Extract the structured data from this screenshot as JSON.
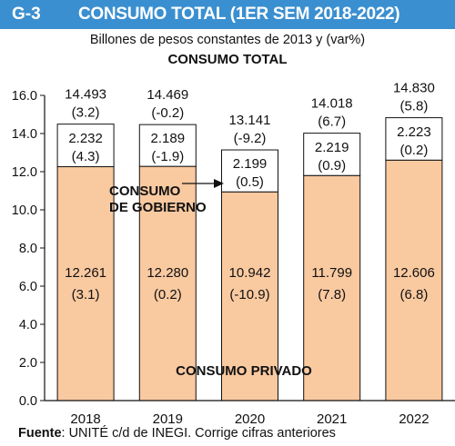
{
  "header": {
    "number": "G-3",
    "title": "CONSUMO TOTAL (1ER SEM 2018-2022)"
  },
  "subtitle": "Billones de pesos constantes de 2013 y (var%)",
  "source": {
    "label": "Fuente",
    "text": ": UNITÉ c/d de INEGI. Corrige cifras anteriores"
  },
  "colors": {
    "header": "#3a8fd0",
    "private": "#f9c9a0",
    "government": "#ffffff",
    "border": "#111111"
  },
  "chart_data": {
    "type": "bar",
    "title": "CONSUMO TOTAL",
    "categories": [
      "2018",
      "2019",
      "2020",
      "2021",
      "2022"
    ],
    "ylim": [
      0,
      16
    ],
    "yticks": [
      "0.0",
      "2.0",
      "4.0",
      "6.0",
      "8.0",
      "10.0",
      "12.0",
      "14.0",
      "16.0"
    ],
    "grid": false,
    "stacked": true,
    "series": [
      {
        "name": "CONSUMO PRIVADO",
        "values": [
          12.261,
          12.28,
          10.942,
          11.799,
          12.606
        ],
        "labels": [
          "12.261",
          "12.280",
          "10.942",
          "11.799",
          "12.606"
        ],
        "var": [
          "(3.1)",
          "(0.2)",
          "(-10.9)",
          "(7.8)",
          "(6.8)"
        ]
      },
      {
        "name": "CONSUMO DE GOBIERNO",
        "values": [
          2.232,
          2.189,
          2.199,
          2.219,
          2.223
        ],
        "labels": [
          "2.232",
          "2.189",
          "2.199",
          "2.219",
          "2.223"
        ],
        "var": [
          "(4.3)",
          "(-1.9)",
          "(0.5)",
          "(0.9)",
          "(0.2)"
        ]
      }
    ],
    "totals": {
      "values": [
        14.493,
        14.469,
        13.141,
        14.018,
        14.83
      ],
      "labels": [
        "14.493",
        "14.469",
        "13.141",
        "14.018",
        "14.830"
      ],
      "var": [
        "(3.2)",
        "(-0.2)",
        "(-9.2)",
        "(6.7)",
        "(5.8)"
      ]
    },
    "annotations": {
      "government_line1": "CONSUMO",
      "government_line2": "DE GOBIERNO",
      "private": "CONSUMO PRIVADO"
    }
  }
}
